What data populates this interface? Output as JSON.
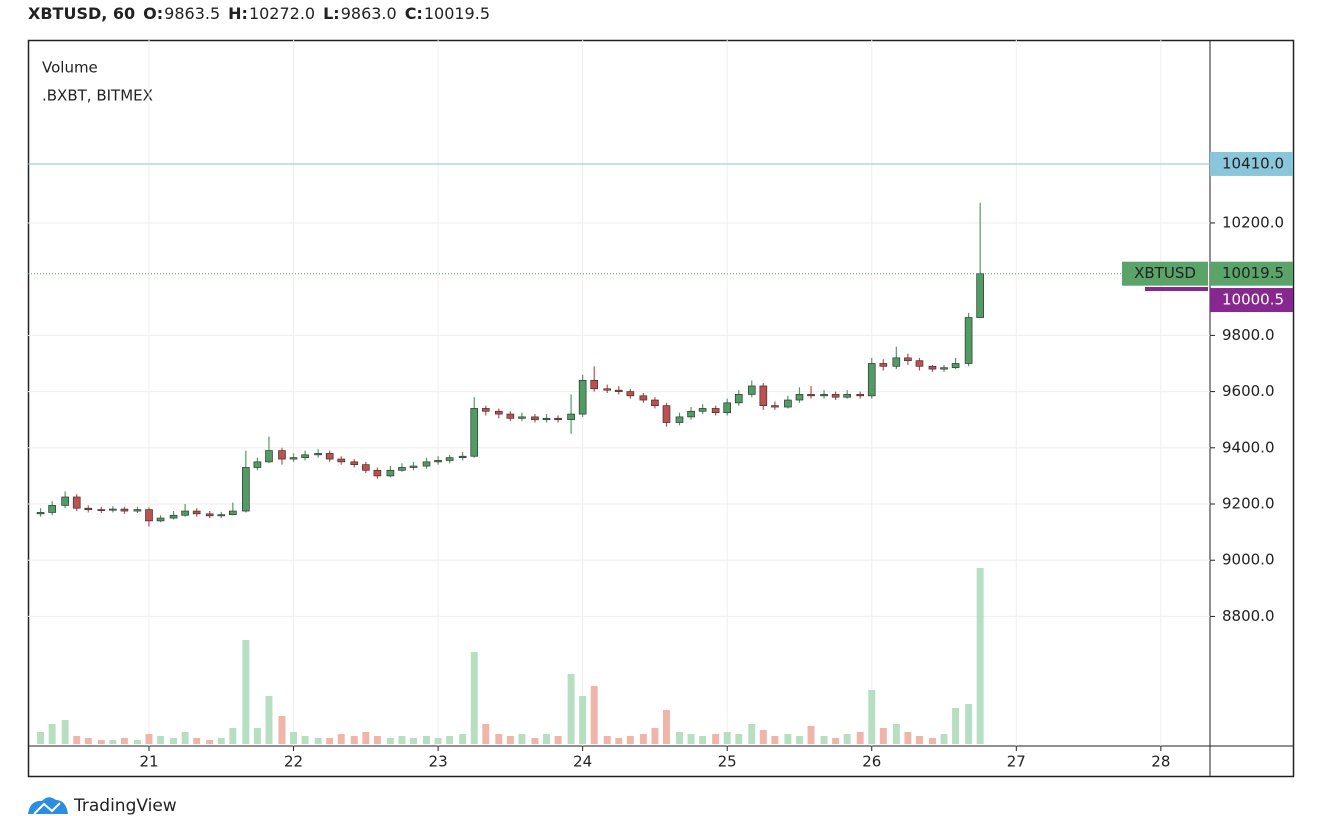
{
  "chart_data": {
    "type": "candlestick",
    "title": "XBTUSD, 60",
    "ohlc_legend": [
      {
        "label": "O:",
        "value": "9863.5"
      },
      {
        "label": "H:",
        "value": "10272.0"
      },
      {
        "label": "L:",
        "value": "9863.0"
      },
      {
        "label": "C:",
        "value": "10019.5"
      }
    ],
    "indicator": "Volume",
    "source": ".BXBT, BITMEX",
    "x": [
      20.25,
      20.33,
      20.42,
      20.5,
      20.58,
      20.67,
      20.75,
      20.83,
      20.92,
      21,
      21.08,
      21.17,
      21.25,
      21.33,
      21.42,
      21.5,
      21.58,
      21.67,
      21.75,
      21.83,
      21.92,
      22,
      22.08,
      22.17,
      22.25,
      22.33,
      22.42,
      22.5,
      22.58,
      22.67,
      22.75,
      22.83,
      22.92,
      23,
      23.08,
      23.17,
      23.25,
      23.33,
      23.42,
      23.5,
      23.58,
      23.67,
      23.75,
      23.83,
      23.92,
      24,
      24.08,
      24.17,
      24.25,
      24.33,
      24.42,
      24.5,
      24.58,
      24.67,
      24.75,
      24.83,
      24.92,
      25,
      25.08,
      25.17,
      25.25,
      25.33,
      25.42,
      25.5,
      25.58,
      25.67,
      25.75,
      25.83,
      25.92,
      26,
      26.08,
      26.17,
      26.25,
      26.33,
      26.42,
      26.5,
      26.58,
      26.67,
      26.75
    ],
    "open": [
      9165,
      9170,
      9195,
      9225,
      9185,
      9180,
      9178,
      9182,
      9175,
      9180,
      9140,
      9150,
      9160,
      9175,
      9165,
      9158,
      9162,
      9175,
      9330,
      9350,
      9390,
      9360,
      9365,
      9375,
      9380,
      9360,
      9350,
      9340,
      9320,
      9300,
      9320,
      9330,
      9335,
      9350,
      9355,
      9365,
      9370,
      9540,
      9530,
      9520,
      9505,
      9510,
      9500,
      9505,
      9500,
      9520,
      9640,
      9610,
      9605,
      9600,
      9585,
      9570,
      9550,
      9490,
      9510,
      9530,
      9540,
      9525,
      9560,
      9590,
      9620,
      9550,
      9545,
      9570,
      9590,
      9585,
      9590,
      9580,
      9590,
      9585,
      9700,
      9690,
      9720,
      9710,
      9690,
      9680,
      9685,
      9700,
      9863.5
    ],
    "high": [
      9185,
      9210,
      9245,
      9235,
      9195,
      9190,
      9192,
      9190,
      9190,
      9188,
      9160,
      9175,
      9200,
      9185,
      9175,
      9172,
      9205,
      9390,
      9365,
      9440,
      9400,
      9380,
      9390,
      9395,
      9390,
      9370,
      9360,
      9350,
      9330,
      9335,
      9345,
      9350,
      9365,
      9370,
      9375,
      9385,
      9580,
      9550,
      9540,
      9530,
      9525,
      9520,
      9520,
      9515,
      9590,
      9660,
      9690,
      9625,
      9620,
      9610,
      9595,
      9580,
      9560,
      9525,
      9545,
      9555,
      9550,
      9575,
      9605,
      9640,
      9630,
      9565,
      9585,
      9615,
      9620,
      9605,
      9600,
      9605,
      9600,
      9720,
      9715,
      9760,
      9735,
      9720,
      9695,
      9695,
      9720,
      9880,
      10272
    ],
    "low": [
      9155,
      9160,
      9185,
      9175,
      9170,
      9168,
      9170,
      9165,
      9168,
      9120,
      9135,
      9145,
      9155,
      9155,
      9150,
      9150,
      9160,
      9170,
      9320,
      9345,
      9340,
      9350,
      9355,
      9365,
      9350,
      9340,
      9330,
      9310,
      9290,
      9295,
      9315,
      9320,
      9325,
      9340,
      9345,
      9355,
      9365,
      9515,
      9505,
      9495,
      9495,
      9490,
      9490,
      9490,
      9450,
      9510,
      9600,
      9595,
      9590,
      9575,
      9560,
      9540,
      9475,
      9480,
      9500,
      9520,
      9515,
      9515,
      9550,
      9580,
      9535,
      9535,
      9540,
      9560,
      9575,
      9575,
      9570,
      9575,
      9575,
      9575,
      9675,
      9680,
      9695,
      9675,
      9670,
      9670,
      9680,
      9690,
      9863
    ],
    "close": [
      9170,
      9195,
      9225,
      9185,
      9180,
      9178,
      9182,
      9175,
      9180,
      9140,
      9150,
      9160,
      9175,
      9165,
      9158,
      9162,
      9175,
      9330,
      9350,
      9390,
      9360,
      9365,
      9375,
      9380,
      9360,
      9350,
      9340,
      9320,
      9300,
      9320,
      9330,
      9335,
      9350,
      9355,
      9365,
      9370,
      9540,
      9530,
      9520,
      9505,
      9510,
      9500,
      9505,
      9500,
      9520,
      9640,
      9610,
      9605,
      9600,
      9585,
      9570,
      9550,
      9490,
      9510,
      9530,
      9540,
      9525,
      9560,
      9590,
      9620,
      9550,
      9545,
      9570,
      9590,
      9585,
      9590,
      9580,
      9590,
      9585,
      9700,
      9690,
      9720,
      9710,
      9690,
      9680,
      9685,
      9700,
      9863.5,
      10019.5
    ],
    "volume": [
      6,
      10,
      12,
      4,
      3,
      2,
      2,
      3,
      2,
      5,
      4,
      3,
      6,
      3,
      2,
      3,
      8,
      52,
      8,
      24,
      14,
      6,
      4,
      3,
      3,
      5,
      4,
      6,
      4,
      3,
      4,
      3,
      4,
      3,
      4,
      5,
      46,
      10,
      5,
      4,
      5,
      3,
      5,
      4,
      35,
      24,
      29,
      4,
      3,
      4,
      5,
      8,
      17,
      6,
      5,
      4,
      5,
      6,
      5,
      10,
      7,
      4,
      5,
      4,
      9,
      4,
      3,
      5,
      6,
      27,
      8,
      10,
      6,
      4,
      3,
      5,
      18,
      20,
      88
    ],
    "xlim": [
      20.163,
      28.34
    ],
    "xticks": [
      21,
      22,
      23,
      24,
      25,
      26,
      27,
      28
    ],
    "ylim": [
      8339,
      10851
    ],
    "yticks": [
      {
        "value": 8800,
        "label": "8800.0"
      },
      {
        "value": 9000,
        "label": "9000.0"
      },
      {
        "value": 9200,
        "label": "9200.0"
      },
      {
        "value": 9400,
        "label": "9400.0"
      },
      {
        "value": 9600,
        "label": "9600.0"
      },
      {
        "value": 9800,
        "label": "9800.0"
      },
      {
        "value": 10200,
        "label": "10200.0"
      }
    ],
    "volume_lim": [
      0,
      100
    ],
    "grid": true,
    "up_color": "#4f9d63",
    "down_color": "#c0504d",
    "volume_up_color": "#b5dfc0",
    "volume_down_color": "#f0b4a8",
    "price_line": {
      "value": 10410,
      "label": "10410.0",
      "color": "#8ac6da"
    },
    "last_price": {
      "name": "XBTUSD",
      "value": 10019.5,
      "label": "10019.5",
      "color": "#5aa46a"
    },
    "ma_price": {
      "value": 10000.5,
      "label": "10000.5",
      "color": "#86288f"
    }
  },
  "footer": {
    "brand": "TradingView"
  }
}
